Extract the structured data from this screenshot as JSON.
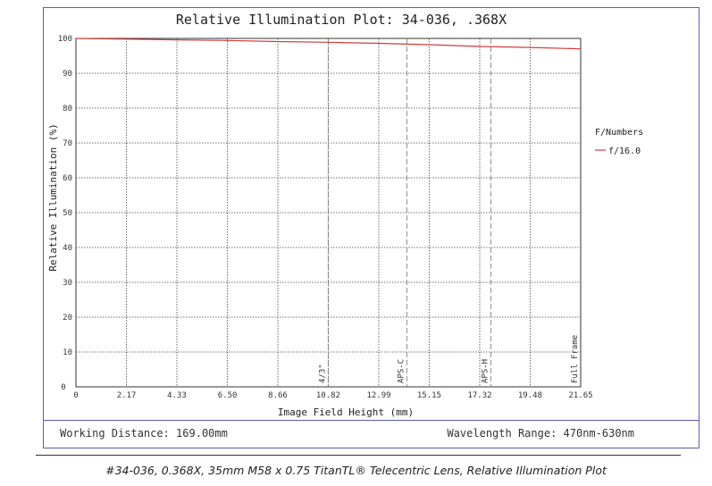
{
  "chart_data": {
    "type": "line",
    "title": "Relative Illumination Plot: 34-036, .368X",
    "xlabel": "Image Field Height (mm)",
    "ylabel": "Relative Illumination (%)",
    "xlim": [
      0,
      21.65
    ],
    "ylim": [
      0,
      100
    ],
    "x_ticks": [
      "0",
      "2.17",
      "4.33",
      "6.50",
      "8.66",
      "10.82",
      "12.99",
      "15.15",
      "17.32",
      "19.48",
      "21.65"
    ],
    "y_ticks": [
      "10",
      "20",
      "30",
      "40",
      "50",
      "60",
      "70",
      "80",
      "90",
      "100"
    ],
    "grid": true,
    "legend": {
      "title": "F/Numbers",
      "position": "right"
    },
    "series": [
      {
        "name": "f/16.0",
        "color": "#d43b3b",
        "x": [
          0,
          2.17,
          4.33,
          6.5,
          8.66,
          10.82,
          12.99,
          15.15,
          17.32,
          19.48,
          21.65
        ],
        "y": [
          100,
          99.8,
          99.6,
          99.4,
          99.1,
          98.9,
          98.6,
          98.2,
          97.7,
          97.4,
          97.0
        ]
      }
    ],
    "sensor_markers": [
      {
        "label": "4/3\"",
        "x": 10.82
      },
      {
        "label": "APS-C",
        "x": 14.2
      },
      {
        "label": "APS-H",
        "x": 17.8
      },
      {
        "label": "Full Frame",
        "x": 21.65
      }
    ]
  },
  "footer": {
    "working_distance": "Working Distance: 169.00mm",
    "wavelength_range": "Wavelength Range: 470nm-630nm"
  },
  "caption": "#34-036, 0.368X, 35mm M58 x 0.75 TitanTL® Telecentric Lens, Relative Illumination Plot"
}
